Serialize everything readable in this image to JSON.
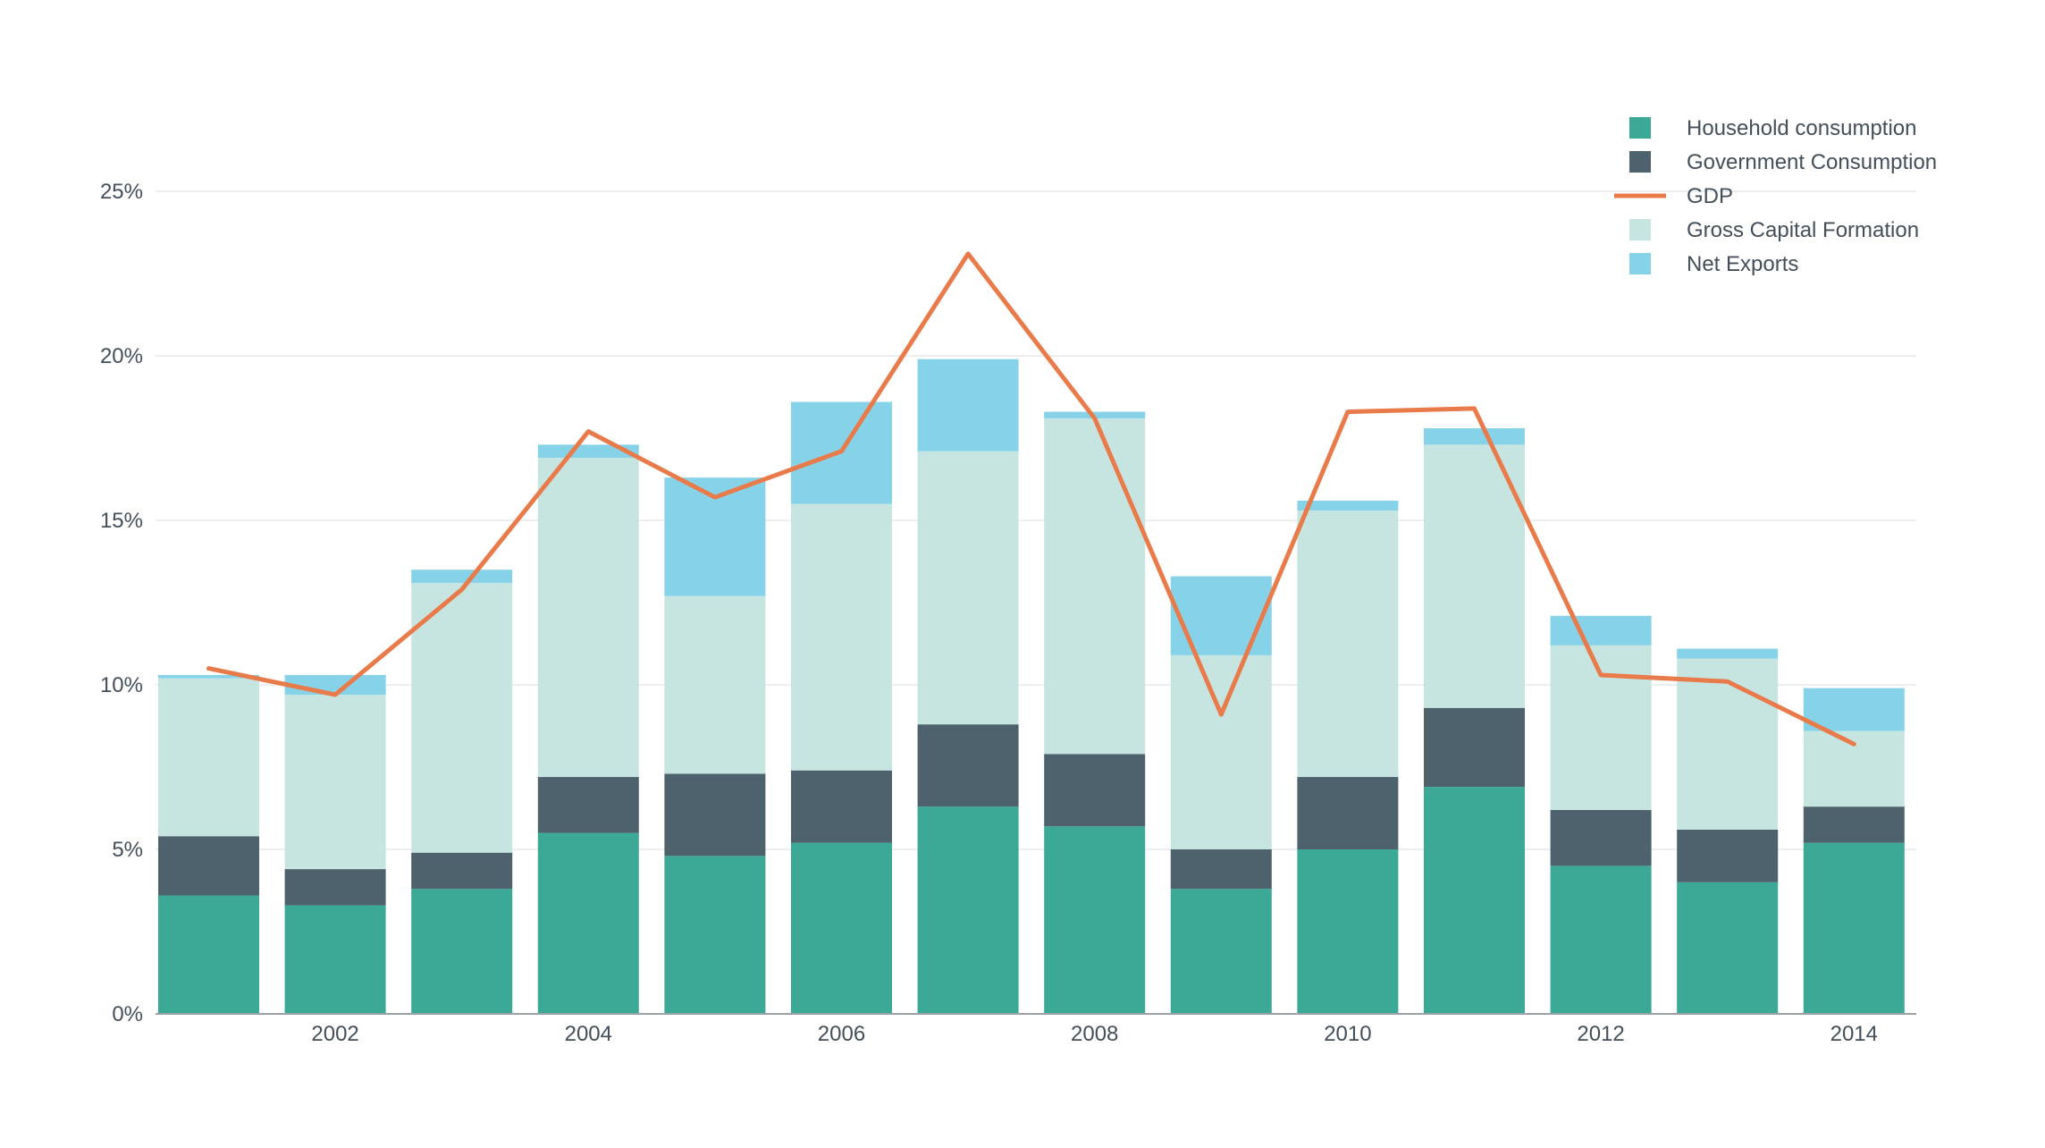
{
  "chart_data": {
    "type": "bar",
    "stacked": true,
    "x": [
      2001,
      2002,
      2003,
      2004,
      2005,
      2006,
      2007,
      2008,
      2009,
      2010,
      2011,
      2012,
      2013,
      2014
    ],
    "x_tick_labels": [
      "2002",
      "2004",
      "2006",
      "2008",
      "2010",
      "2012",
      "2014"
    ],
    "y_tick_labels": [
      "0%",
      "5%",
      "10%",
      "15%",
      "20%",
      "25%"
    ],
    "ylim": [
      0,
      25
    ],
    "grid": true,
    "legend_position": "top-right",
    "series": [
      {
        "name": "Household consumption",
        "type": "bar",
        "color": "#3ca997",
        "values": [
          3.6,
          3.3,
          3.8,
          5.5,
          4.8,
          5.2,
          6.3,
          5.7,
          3.8,
          5.0,
          6.9,
          4.5,
          4.0,
          5.2
        ]
      },
      {
        "name": "Government Consumption",
        "type": "bar",
        "color": "#4e626e",
        "values": [
          1.8,
          1.1,
          1.1,
          1.7,
          2.5,
          2.2,
          2.5,
          2.2,
          1.2,
          2.2,
          2.4,
          1.7,
          1.6,
          1.1
        ]
      },
      {
        "name": "GDP",
        "type": "line",
        "color": "#e97b4b",
        "values": [
          10.5,
          9.7,
          12.9,
          17.7,
          15.7,
          17.1,
          23.1,
          18.1,
          9.1,
          18.3,
          18.4,
          10.3,
          10.1,
          8.2
        ]
      },
      {
        "name": "Gross Capital Formation",
        "type": "bar",
        "color": "#c6e5e1",
        "values": [
          4.8,
          5.3,
          8.2,
          9.7,
          5.4,
          8.1,
          8.3,
          10.2,
          5.9,
          8.1,
          8.0,
          5.0,
          5.2,
          2.3
        ]
      },
      {
        "name": "Net Exports",
        "type": "bar",
        "color": "#86d3e9",
        "values": [
          0.1,
          0.6,
          0.4,
          0.4,
          3.6,
          3.1,
          2.8,
          0.2,
          2.4,
          0.3,
          0.5,
          0.9,
          0.3,
          1.3
        ]
      }
    ]
  },
  "colors": {
    "grid": "#e6e8ea",
    "axis": "#9aa2a8",
    "text": "#444f5a"
  }
}
